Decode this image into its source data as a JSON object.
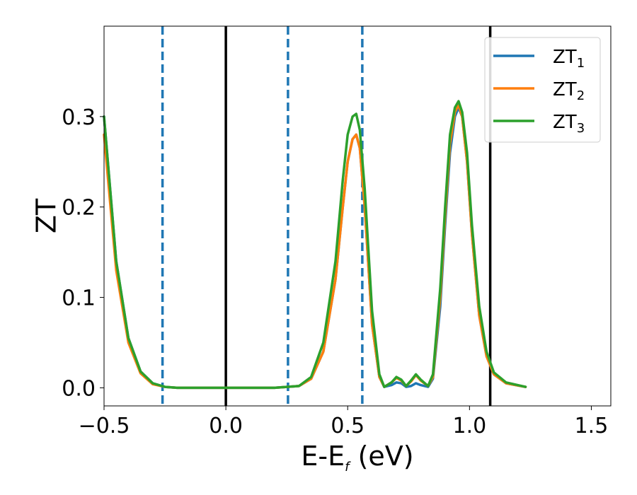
{
  "chart_data": {
    "type": "line",
    "xlabel_main": "E-E",
    "xlabel_sub": "f",
    "xlabel_unit": " (eV)",
    "ylabel": "ZT",
    "xlim": [
      -0.5,
      1.58
    ],
    "ylim": [
      -0.02,
      0.4
    ],
    "x_ticks": [
      -0.5,
      0.0,
      0.5,
      1.0,
      1.5
    ],
    "x_tick_labels": [
      "−0.5",
      "0.0",
      "0.5",
      "1.0",
      "1.5"
    ],
    "y_ticks": [
      0.0,
      0.1,
      0.2,
      0.3
    ],
    "y_tick_labels": [
      "0.0",
      "0.1",
      "0.2",
      "0.3"
    ],
    "grid": false,
    "legend_position": "top-right",
    "vertical_lines": [
      {
        "x": -0.26,
        "style": "dashed",
        "color": "#1f77b4"
      },
      {
        "x": 0.0,
        "style": "solid",
        "color": "#000000"
      },
      {
        "x": 0.255,
        "style": "dashed",
        "color": "#1f77b4"
      },
      {
        "x": 0.56,
        "style": "dashed",
        "color": "#1f77b4"
      },
      {
        "x": 1.085,
        "style": "solid",
        "color": "#000000"
      }
    ],
    "x": [
      -0.5,
      -0.45,
      -0.4,
      -0.35,
      -0.3,
      -0.25,
      -0.2,
      0.0,
      0.2,
      0.3,
      0.35,
      0.4,
      0.45,
      0.48,
      0.5,
      0.52,
      0.535,
      0.55,
      0.57,
      0.6,
      0.63,
      0.65,
      0.68,
      0.7,
      0.72,
      0.74,
      0.76,
      0.78,
      0.8,
      0.83,
      0.85,
      0.88,
      0.9,
      0.92,
      0.94,
      0.955,
      0.97,
      0.99,
      1.01,
      1.04,
      1.07,
      1.1,
      1.15,
      1.23
    ],
    "series": [
      {
        "name_main": "ZT",
        "name_sub": "1",
        "color": "#1f77b4",
        "values": [
          0.3,
          0.14,
          0.055,
          0.018,
          0.005,
          0.001,
          0.0,
          0.0,
          0.0,
          0.002,
          0.01,
          0.04,
          0.12,
          0.2,
          0.25,
          0.275,
          0.28,
          0.265,
          0.2,
          0.07,
          0.012,
          0.001,
          0.003,
          0.006,
          0.005,
          0.001,
          0.002,
          0.005,
          0.003,
          0.001,
          0.01,
          0.09,
          0.18,
          0.26,
          0.3,
          0.31,
          0.3,
          0.25,
          0.17,
          0.08,
          0.035,
          0.015,
          0.005,
          0.001
        ]
      },
      {
        "name_main": "ZT",
        "name_sub": "2",
        "color": "#ff7f0e",
        "values": [
          0.28,
          0.13,
          0.05,
          0.016,
          0.004,
          0.001,
          0.0,
          0.0,
          0.0,
          0.002,
          0.01,
          0.04,
          0.12,
          0.2,
          0.25,
          0.275,
          0.28,
          0.265,
          0.2,
          0.07,
          0.012,
          0.001,
          0.006,
          0.011,
          0.008,
          0.002,
          0.007,
          0.014,
          0.008,
          0.002,
          0.012,
          0.1,
          0.19,
          0.27,
          0.305,
          0.313,
          0.3,
          0.25,
          0.17,
          0.08,
          0.035,
          0.015,
          0.005,
          0.001
        ]
      },
      {
        "name_main": "ZT",
        "name_sub": "3",
        "color": "#2ca02c",
        "values": [
          0.3,
          0.14,
          0.055,
          0.018,
          0.005,
          0.001,
          0.0,
          0.0,
          0.0,
          0.002,
          0.012,
          0.05,
          0.14,
          0.23,
          0.28,
          0.3,
          0.303,
          0.285,
          0.22,
          0.085,
          0.015,
          0.001,
          0.006,
          0.012,
          0.009,
          0.002,
          0.008,
          0.015,
          0.009,
          0.002,
          0.015,
          0.11,
          0.2,
          0.28,
          0.31,
          0.317,
          0.305,
          0.26,
          0.18,
          0.09,
          0.04,
          0.017,
          0.006,
          0.001
        ]
      }
    ]
  }
}
